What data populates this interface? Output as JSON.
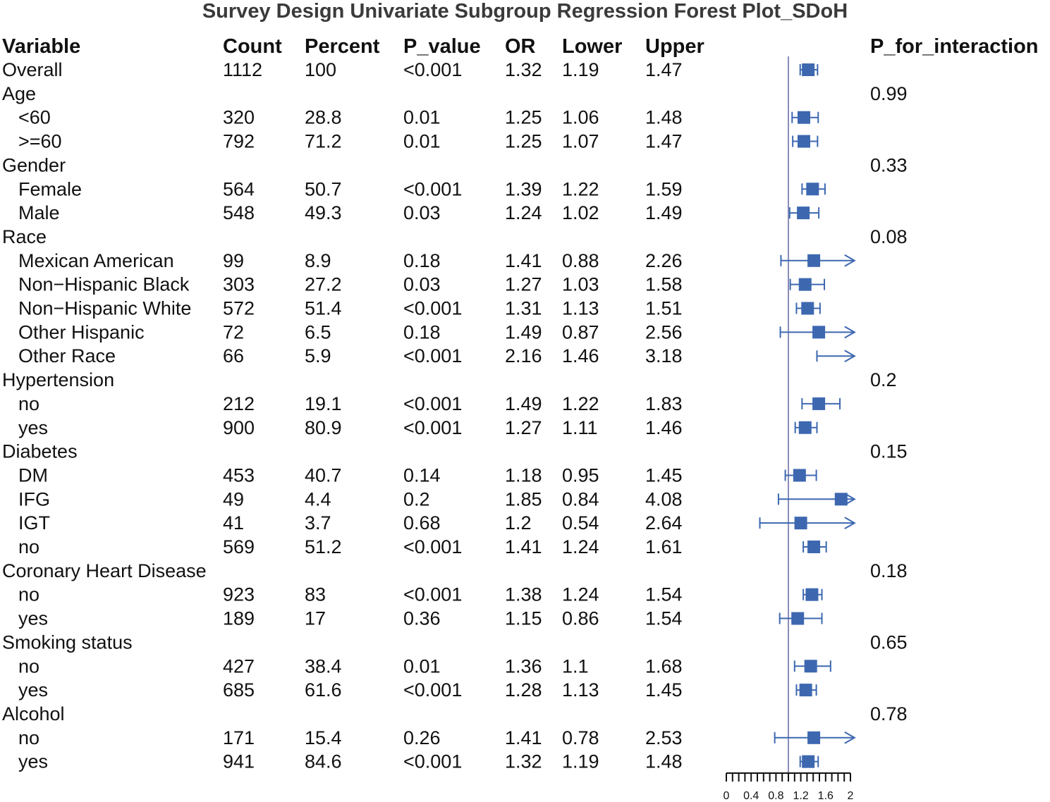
{
  "chart_data": {
    "type": "forest",
    "title": "Survey Design Univariate Subgroup Regression Forest Plot_SDoH",
    "columns": [
      "Variable",
      "Count",
      "Percent",
      "P_value",
      "OR",
      "Lower",
      "Upper"
    ],
    "interaction_header": "P_for_interaction",
    "reference_line": 1,
    "xlim": [
      0,
      2
    ],
    "x_ticks": [
      "0",
      "0.4",
      "0.8",
      "1.2",
      "1.6",
      "2"
    ],
    "color": "#3d68b0",
    "reference_line_color": "#8a8cb8",
    "rows": [
      {
        "variable": "Overall",
        "indent": false,
        "count": "1112",
        "percent": "100",
        "p_value": "<0.001",
        "or": 1.32,
        "lower": 1.19,
        "upper": 1.47,
        "p_interaction": ""
      },
      {
        "variable": "Age",
        "indent": false,
        "count": "",
        "percent": "",
        "p_value": "",
        "or": null,
        "lower": null,
        "upper": null,
        "p_interaction": "0.99"
      },
      {
        "variable": "<60",
        "indent": true,
        "count": "320",
        "percent": "28.8",
        "p_value": "0.01",
        "or": 1.25,
        "lower": 1.06,
        "upper": 1.48,
        "p_interaction": ""
      },
      {
        "variable": ">=60",
        "indent": true,
        "count": "792",
        "percent": "71.2",
        "p_value": "0.01",
        "or": 1.25,
        "lower": 1.07,
        "upper": 1.47,
        "p_interaction": ""
      },
      {
        "variable": "Gender",
        "indent": false,
        "count": "",
        "percent": "",
        "p_value": "",
        "or": null,
        "lower": null,
        "upper": null,
        "p_interaction": "0.33"
      },
      {
        "variable": "Female",
        "indent": true,
        "count": "564",
        "percent": "50.7",
        "p_value": "<0.001",
        "or": 1.39,
        "lower": 1.22,
        "upper": 1.59,
        "p_interaction": ""
      },
      {
        "variable": "Male",
        "indent": true,
        "count": "548",
        "percent": "49.3",
        "p_value": "0.03",
        "or": 1.24,
        "lower": 1.02,
        "upper": 1.49,
        "p_interaction": ""
      },
      {
        "variable": "Race",
        "indent": false,
        "count": "",
        "percent": "",
        "p_value": "",
        "or": null,
        "lower": null,
        "upper": null,
        "p_interaction": "0.08"
      },
      {
        "variable": "Mexican American",
        "indent": true,
        "count": "99",
        "percent": "8.9",
        "p_value": "0.18",
        "or": 1.41,
        "lower": 0.88,
        "upper": 2.26,
        "p_interaction": ""
      },
      {
        "variable": "Non−Hispanic Black",
        "indent": true,
        "count": "303",
        "percent": "27.2",
        "p_value": "0.03",
        "or": 1.27,
        "lower": 1.03,
        "upper": 1.58,
        "p_interaction": ""
      },
      {
        "variable": "Non−Hispanic White",
        "indent": true,
        "count": "572",
        "percent": "51.4",
        "p_value": "<0.001",
        "or": 1.31,
        "lower": 1.13,
        "upper": 1.51,
        "p_interaction": ""
      },
      {
        "variable": "Other Hispanic",
        "indent": true,
        "count": "72",
        "percent": "6.5",
        "p_value": "0.18",
        "or": 1.49,
        "lower": 0.87,
        "upper": 2.56,
        "p_interaction": ""
      },
      {
        "variable": "Other Race",
        "indent": true,
        "count": "66",
        "percent": "5.9",
        "p_value": "<0.001",
        "or": 2.16,
        "lower": 1.46,
        "upper": 3.18,
        "p_interaction": ""
      },
      {
        "variable": "Hypertension",
        "indent": false,
        "count": "",
        "percent": "",
        "p_value": "",
        "or": null,
        "lower": null,
        "upper": null,
        "p_interaction": "0.2"
      },
      {
        "variable": "no",
        "indent": true,
        "count": "212",
        "percent": "19.1",
        "p_value": "<0.001",
        "or": 1.49,
        "lower": 1.22,
        "upper": 1.83,
        "p_interaction": ""
      },
      {
        "variable": "yes",
        "indent": true,
        "count": "900",
        "percent": "80.9",
        "p_value": "<0.001",
        "or": 1.27,
        "lower": 1.11,
        "upper": 1.46,
        "p_interaction": ""
      },
      {
        "variable": "Diabetes",
        "indent": false,
        "count": "",
        "percent": "",
        "p_value": "",
        "or": null,
        "lower": null,
        "upper": null,
        "p_interaction": "0.15"
      },
      {
        "variable": "DM",
        "indent": true,
        "count": "453",
        "percent": "40.7",
        "p_value": "0.14",
        "or": 1.18,
        "lower": 0.95,
        "upper": 1.45,
        "p_interaction": ""
      },
      {
        "variable": "IFG",
        "indent": true,
        "count": "49",
        "percent": "4.4",
        "p_value": "0.2",
        "or": 1.85,
        "lower": 0.84,
        "upper": 4.08,
        "p_interaction": ""
      },
      {
        "variable": "IGT",
        "indent": true,
        "count": "41",
        "percent": "3.7",
        "p_value": "0.68",
        "or": 1.2,
        "lower": 0.54,
        "upper": 2.64,
        "p_interaction": ""
      },
      {
        "variable": "no",
        "indent": true,
        "count": "569",
        "percent": "51.2",
        "p_value": "<0.001",
        "or": 1.41,
        "lower": 1.24,
        "upper": 1.61,
        "p_interaction": ""
      },
      {
        "variable": "Coronary Heart Disease",
        "indent": false,
        "count": "",
        "percent": "",
        "p_value": "",
        "or": null,
        "lower": null,
        "upper": null,
        "p_interaction": "0.18"
      },
      {
        "variable": "no",
        "indent": true,
        "count": "923",
        "percent": "83",
        "p_value": "<0.001",
        "or": 1.38,
        "lower": 1.24,
        "upper": 1.54,
        "p_interaction": ""
      },
      {
        "variable": "yes",
        "indent": true,
        "count": "189",
        "percent": "17",
        "p_value": "0.36",
        "or": 1.15,
        "lower": 0.86,
        "upper": 1.54,
        "p_interaction": ""
      },
      {
        "variable": "Smoking status",
        "indent": false,
        "count": "",
        "percent": "",
        "p_value": "",
        "or": null,
        "lower": null,
        "upper": null,
        "p_interaction": "0.65"
      },
      {
        "variable": "no",
        "indent": true,
        "count": "427",
        "percent": "38.4",
        "p_value": "0.01",
        "or": 1.36,
        "lower": 1.1,
        "upper": 1.68,
        "p_interaction": ""
      },
      {
        "variable": "yes",
        "indent": true,
        "count": "685",
        "percent": "61.6",
        "p_value": "<0.001",
        "or": 1.28,
        "lower": 1.13,
        "upper": 1.45,
        "p_interaction": ""
      },
      {
        "variable": "Alcohol",
        "indent": false,
        "count": "",
        "percent": "",
        "p_value": "",
        "or": null,
        "lower": null,
        "upper": null,
        "p_interaction": "0.78"
      },
      {
        "variable": "no",
        "indent": true,
        "count": "171",
        "percent": "15.4",
        "p_value": "0.26",
        "or": 1.41,
        "lower": 0.78,
        "upper": 2.53,
        "p_interaction": ""
      },
      {
        "variable": "yes",
        "indent": true,
        "count": "941",
        "percent": "84.6",
        "p_value": "<0.001",
        "or": 1.32,
        "lower": 1.19,
        "upper": 1.48,
        "p_interaction": ""
      }
    ]
  }
}
